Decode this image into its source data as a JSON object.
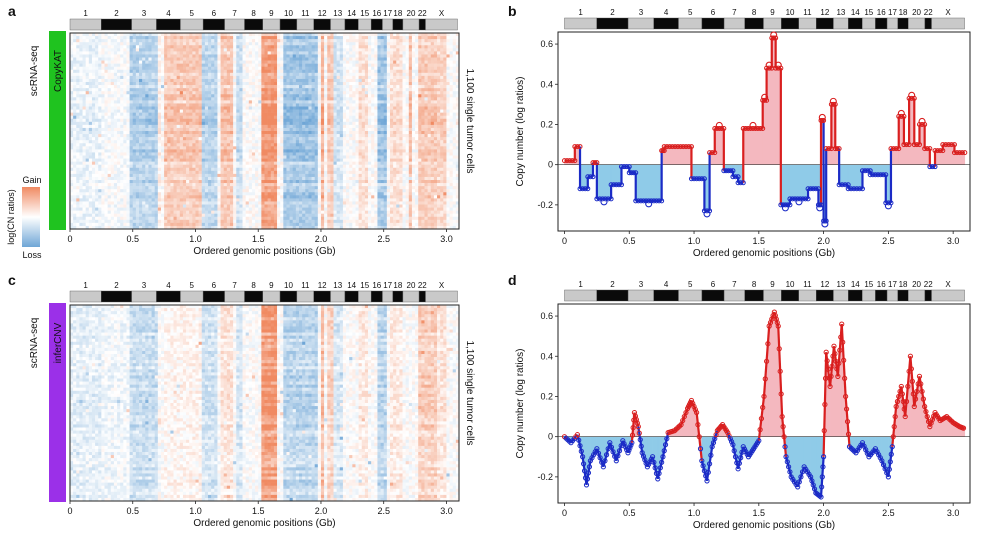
{
  "panels": [
    {
      "letter": "a"
    },
    {
      "letter": "b"
    },
    {
      "letter": "c"
    },
    {
      "letter": "d"
    }
  ],
  "colors": {
    "gain": "#f08a62",
    "loss": "#6fa6d6",
    "copykat_bar": "#1fc31f",
    "infercnv_bar": "#9b30e8",
    "gain_fill": "#f4b8bf",
    "loss_fill": "#8fcbe8",
    "gain_point": "#d91f1f",
    "loss_point": "#1b2bc6"
  },
  "chromosomes": {
    "labels": [
      "1",
      "2",
      "3",
      "4",
      "5",
      "6",
      "7",
      "8",
      "9",
      "10",
      "11",
      "12",
      "13",
      "14",
      "15",
      "16",
      "17",
      "18",
      "20",
      "22",
      "X"
    ],
    "boundaries_gb": [
      0,
      0.249,
      0.491,
      0.689,
      0.88,
      1.061,
      1.232,
      1.391,
      1.536,
      1.674,
      1.808,
      1.943,
      2.076,
      2.191,
      2.298,
      2.4,
      2.49,
      2.573,
      2.653,
      2.782,
      2.833,
      3.088
    ]
  },
  "chart_data": [
    {
      "id": "a",
      "type": "heatmap",
      "method_label": "CopyKAT",
      "assay_label": "scRNA-seq",
      "right_label": "1,100 single tumor cells",
      "xlabel": "Ordered genomic positions (Gb)",
      "xticks": [
        "0",
        "0.5",
        "1.0",
        "1.5",
        "2.0",
        "2.5",
        "3.0"
      ],
      "xlim": [
        0,
        3.1
      ],
      "legend": {
        "title": "log(CN ratios)",
        "high": "Gain",
        "low": "Loss"
      },
      "regions": [
        {
          "start": 0.0,
          "end": 0.25,
          "value": -0.15
        },
        {
          "start": 0.25,
          "end": 0.47,
          "value": -0.05
        },
        {
          "start": 0.47,
          "end": 0.7,
          "value": -0.55
        },
        {
          "start": 0.7,
          "end": 0.73,
          "value": 0.15
        },
        {
          "start": 0.75,
          "end": 1.04,
          "value": 0.5
        },
        {
          "start": 1.04,
          "end": 1.17,
          "value": -0.5
        },
        {
          "start": 1.19,
          "end": 1.29,
          "value": 0.55
        },
        {
          "start": 1.32,
          "end": 1.38,
          "value": -0.4
        },
        {
          "start": 1.52,
          "end": 1.64,
          "value": 0.95
        },
        {
          "start": 1.71,
          "end": 1.98,
          "value": -0.7
        },
        {
          "start": 2.0,
          "end": 2.03,
          "value": 0.7
        },
        {
          "start": 2.05,
          "end": 2.1,
          "value": 0.5
        },
        {
          "start": 2.1,
          "end": 2.18,
          "value": -0.3
        },
        {
          "start": 2.3,
          "end": 2.38,
          "value": 0.3
        },
        {
          "start": 2.46,
          "end": 2.53,
          "value": -0.7
        },
        {
          "start": 2.54,
          "end": 2.66,
          "value": 0.3
        },
        {
          "start": 2.7,
          "end": 2.72,
          "value": 0.6
        },
        {
          "start": 2.78,
          "end": 2.92,
          "value": 0.5
        },
        {
          "start": 2.92,
          "end": 3.0,
          "value": 0.4
        }
      ]
    },
    {
      "id": "b",
      "type": "line",
      "ylabel": "Copy number (log ratios)",
      "xlabel": "Ordered genomic positions (Gb)",
      "xticks": [
        "0",
        "0.5",
        "1.0",
        "1.5",
        "2.0",
        "2.5",
        "3.0"
      ],
      "yticks": [
        "-0.2",
        "0",
        "0.2",
        "0.4",
        "0.6"
      ],
      "xlim": [
        -0.05,
        3.13
      ],
      "ylim": [
        -0.33,
        0.66
      ],
      "segments": [
        {
          "start": 0.0,
          "end": 0.08,
          "value": 0.02
        },
        {
          "start": 0.08,
          "end": 0.12,
          "value": 0.09
        },
        {
          "start": 0.12,
          "end": 0.18,
          "value": -0.12
        },
        {
          "start": 0.18,
          "end": 0.22,
          "value": -0.06
        },
        {
          "start": 0.22,
          "end": 0.25,
          "value": 0.01
        },
        {
          "start": 0.25,
          "end": 0.36,
          "value": -0.17
        },
        {
          "start": 0.36,
          "end": 0.44,
          "value": -0.1
        },
        {
          "start": 0.44,
          "end": 0.5,
          "value": -0.01
        },
        {
          "start": 0.5,
          "end": 0.55,
          "value": -0.04
        },
        {
          "start": 0.55,
          "end": 0.75,
          "value": -0.18
        },
        {
          "start": 0.75,
          "end": 0.77,
          "value": 0.07
        },
        {
          "start": 0.77,
          "end": 0.98,
          "value": 0.09
        },
        {
          "start": 0.98,
          "end": 1.08,
          "value": -0.07
        },
        {
          "start": 1.08,
          "end": 1.12,
          "value": -0.23
        },
        {
          "start": 1.12,
          "end": 1.16,
          "value": 0.06
        },
        {
          "start": 1.16,
          "end": 1.23,
          "value": 0.18
        },
        {
          "start": 1.23,
          "end": 1.3,
          "value": -0.03
        },
        {
          "start": 1.3,
          "end": 1.34,
          "value": -0.06
        },
        {
          "start": 1.34,
          "end": 1.38,
          "value": -0.09
        },
        {
          "start": 1.38,
          "end": 1.53,
          "value": 0.18
        },
        {
          "start": 1.53,
          "end": 1.56,
          "value": 0.32
        },
        {
          "start": 1.56,
          "end": 1.6,
          "value": 0.48
        },
        {
          "start": 1.6,
          "end": 1.63,
          "value": 0.63
        },
        {
          "start": 1.63,
          "end": 1.67,
          "value": 0.48
        },
        {
          "start": 1.67,
          "end": 1.74,
          "value": -0.2
        },
        {
          "start": 1.74,
          "end": 1.88,
          "value": -0.17
        },
        {
          "start": 1.88,
          "end": 1.96,
          "value": -0.12
        },
        {
          "start": 1.96,
          "end": 1.98,
          "value": -0.2
        },
        {
          "start": 1.98,
          "end": 2.0,
          "value": 0.22
        },
        {
          "start": 2.0,
          "end": 2.02,
          "value": -0.28
        },
        {
          "start": 2.02,
          "end": 2.06,
          "value": 0.08
        },
        {
          "start": 2.06,
          "end": 2.09,
          "value": 0.3
        },
        {
          "start": 2.09,
          "end": 2.12,
          "value": 0.08
        },
        {
          "start": 2.12,
          "end": 2.19,
          "value": -0.1
        },
        {
          "start": 2.19,
          "end": 2.3,
          "value": -0.12
        },
        {
          "start": 2.3,
          "end": 2.36,
          "value": -0.03
        },
        {
          "start": 2.36,
          "end": 2.48,
          "value": -0.05
        },
        {
          "start": 2.48,
          "end": 2.52,
          "value": -0.19
        },
        {
          "start": 2.52,
          "end": 2.58,
          "value": 0.08
        },
        {
          "start": 2.58,
          "end": 2.62,
          "value": 0.24
        },
        {
          "start": 2.62,
          "end": 2.66,
          "value": 0.1
        },
        {
          "start": 2.66,
          "end": 2.7,
          "value": 0.33
        },
        {
          "start": 2.7,
          "end": 2.74,
          "value": 0.1
        },
        {
          "start": 2.74,
          "end": 2.78,
          "value": 0.2
        },
        {
          "start": 2.78,
          "end": 2.82,
          "value": 0.08
        },
        {
          "start": 2.82,
          "end": 2.86,
          "value": -0.01
        },
        {
          "start": 2.86,
          "end": 2.92,
          "value": 0.07
        },
        {
          "start": 2.92,
          "end": 3.01,
          "value": 0.1
        },
        {
          "start": 3.01,
          "end": 3.09,
          "value": 0.06
        }
      ]
    },
    {
      "id": "c",
      "type": "heatmap",
      "method_label": "inferCNV",
      "assay_label": "scRNA-seq",
      "right_label": "1,100 single tumor cells",
      "xlabel": "Ordered genomic positions (Gb)",
      "xticks": [
        "0",
        "0.5",
        "1.0",
        "1.5",
        "2.0",
        "2.5",
        "3.0"
      ],
      "xlim": [
        0,
        3.1
      ],
      "regions": [
        {
          "start": 0.0,
          "end": 0.25,
          "value": -0.2
        },
        {
          "start": 0.25,
          "end": 0.47,
          "value": -0.1
        },
        {
          "start": 0.47,
          "end": 0.7,
          "value": -0.4
        },
        {
          "start": 0.75,
          "end": 1.04,
          "value": 0.1
        },
        {
          "start": 1.04,
          "end": 1.17,
          "value": -0.35
        },
        {
          "start": 1.19,
          "end": 1.29,
          "value": 0.25
        },
        {
          "start": 1.32,
          "end": 1.38,
          "value": -0.3
        },
        {
          "start": 1.52,
          "end": 1.64,
          "value": 0.95
        },
        {
          "start": 1.71,
          "end": 1.98,
          "value": -0.5
        },
        {
          "start": 2.0,
          "end": 2.03,
          "value": 0.6
        },
        {
          "start": 2.05,
          "end": 2.1,
          "value": 0.4
        },
        {
          "start": 2.1,
          "end": 2.18,
          "value": -0.3
        },
        {
          "start": 2.3,
          "end": 2.38,
          "value": 0.2
        },
        {
          "start": 2.46,
          "end": 2.53,
          "value": -0.5
        },
        {
          "start": 2.54,
          "end": 2.66,
          "value": 0.2
        },
        {
          "start": 2.78,
          "end": 2.92,
          "value": 0.45
        },
        {
          "start": 2.92,
          "end": 3.0,
          "value": 0.25
        }
      ]
    },
    {
      "id": "d",
      "type": "line",
      "ylabel": "Copy number (log ratios)",
      "xlabel": "Ordered genomic positions (Gb)",
      "xticks": [
        "0",
        "0.5",
        "1.0",
        "1.5",
        "2.0",
        "2.5",
        "3.0"
      ],
      "yticks": [
        "-0.2",
        "0",
        "0.2",
        "0.4",
        "0.6"
      ],
      "xlim": [
        -0.05,
        3.13
      ],
      "ylim": [
        -0.33,
        0.66
      ],
      "profile": [
        {
          "x": 0.0,
          "y": 0.0
        },
        {
          "x": 0.05,
          "y": -0.03
        },
        {
          "x": 0.1,
          "y": 0.01
        },
        {
          "x": 0.14,
          "y": -0.1
        },
        {
          "x": 0.17,
          "y": -0.24
        },
        {
          "x": 0.2,
          "y": -0.12
        },
        {
          "x": 0.25,
          "y": -0.06
        },
        {
          "x": 0.3,
          "y": -0.15
        },
        {
          "x": 0.35,
          "y": -0.03
        },
        {
          "x": 0.4,
          "y": -0.12
        },
        {
          "x": 0.45,
          "y": -0.02
        },
        {
          "x": 0.49,
          "y": -0.08
        },
        {
          "x": 0.52,
          "y": -0.03
        },
        {
          "x": 0.54,
          "y": 0.12
        },
        {
          "x": 0.57,
          "y": 0.05
        },
        {
          "x": 0.6,
          "y": -0.08
        },
        {
          "x": 0.64,
          "y": -0.15
        },
        {
          "x": 0.68,
          "y": -0.1
        },
        {
          "x": 0.72,
          "y": -0.21
        },
        {
          "x": 0.76,
          "y": -0.1
        },
        {
          "x": 0.8,
          "y": 0.02
        },
        {
          "x": 0.85,
          "y": 0.03
        },
        {
          "x": 0.9,
          "y": 0.06
        },
        {
          "x": 0.95,
          "y": 0.14
        },
        {
          "x": 0.98,
          "y": 0.18
        },
        {
          "x": 1.02,
          "y": 0.12
        },
        {
          "x": 1.06,
          "y": -0.12
        },
        {
          "x": 1.1,
          "y": -0.22
        },
        {
          "x": 1.14,
          "y": -0.05
        },
        {
          "x": 1.18,
          "y": 0.03
        },
        {
          "x": 1.22,
          "y": 0.06
        },
        {
          "x": 1.26,
          "y": 0.02
        },
        {
          "x": 1.3,
          "y": -0.04
        },
        {
          "x": 1.34,
          "y": -0.16
        },
        {
          "x": 1.38,
          "y": -0.05
        },
        {
          "x": 1.42,
          "y": -0.1
        },
        {
          "x": 1.46,
          "y": -0.06
        },
        {
          "x": 1.5,
          "y": -0.02
        },
        {
          "x": 1.54,
          "y": 0.2
        },
        {
          "x": 1.58,
          "y": 0.55
        },
        {
          "x": 1.62,
          "y": 0.62
        },
        {
          "x": 1.65,
          "y": 0.55
        },
        {
          "x": 1.68,
          "y": 0.1
        },
        {
          "x": 1.71,
          "y": -0.1
        },
        {
          "x": 1.75,
          "y": -0.2
        },
        {
          "x": 1.8,
          "y": -0.25
        },
        {
          "x": 1.85,
          "y": -0.15
        },
        {
          "x": 1.9,
          "y": -0.2
        },
        {
          "x": 1.94,
          "y": -0.28
        },
        {
          "x": 1.98,
          "y": -0.3
        },
        {
          "x": 2.0,
          "y": -0.1
        },
        {
          "x": 2.02,
          "y": 0.42
        },
        {
          "x": 2.05,
          "y": 0.25
        },
        {
          "x": 2.08,
          "y": 0.45
        },
        {
          "x": 2.11,
          "y": 0.3
        },
        {
          "x": 2.14,
          "y": 0.56
        },
        {
          "x": 2.17,
          "y": 0.2
        },
        {
          "x": 2.2,
          "y": -0.05
        },
        {
          "x": 2.25,
          "y": -0.08
        },
        {
          "x": 2.3,
          "y": -0.03
        },
        {
          "x": 2.35,
          "y": -0.1
        },
        {
          "x": 2.4,
          "y": -0.06
        },
        {
          "x": 2.45,
          "y": -0.12
        },
        {
          "x": 2.5,
          "y": -0.2
        },
        {
          "x": 2.53,
          "y": -0.05
        },
        {
          "x": 2.56,
          "y": 0.15
        },
        {
          "x": 2.6,
          "y": 0.25
        },
        {
          "x": 2.63,
          "y": 0.1
        },
        {
          "x": 2.67,
          "y": 0.4
        },
        {
          "x": 2.7,
          "y": 0.15
        },
        {
          "x": 2.74,
          "y": 0.3
        },
        {
          "x": 2.78,
          "y": 0.15
        },
        {
          "x": 2.82,
          "y": 0.05
        },
        {
          "x": 2.86,
          "y": 0.12
        },
        {
          "x": 2.9,
          "y": 0.08
        },
        {
          "x": 2.95,
          "y": 0.1
        },
        {
          "x": 3.0,
          "y": 0.07
        },
        {
          "x": 3.05,
          "y": 0.05
        },
        {
          "x": 3.09,
          "y": 0.04
        }
      ]
    }
  ]
}
